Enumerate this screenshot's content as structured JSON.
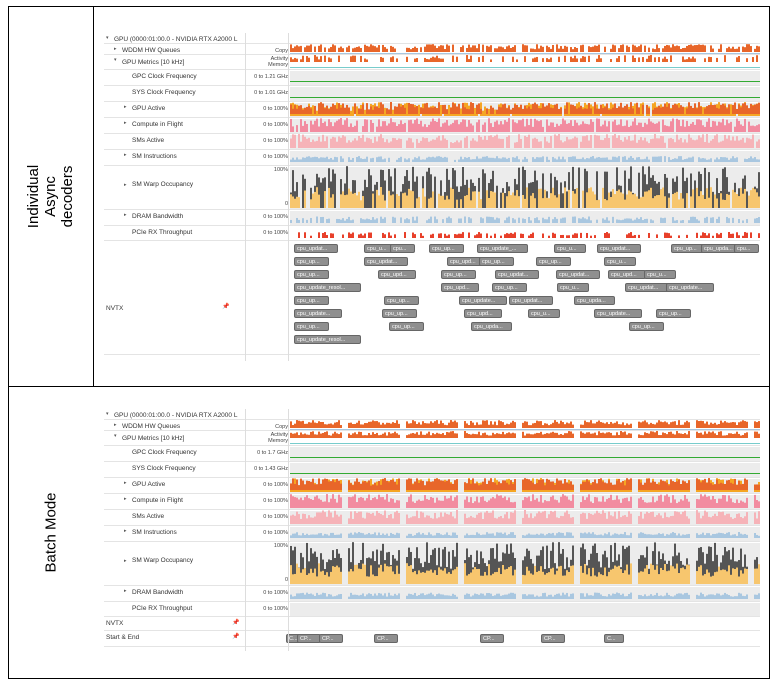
{
  "table": {
    "row_labels": [
      "Individual\nAsync\ndecoders",
      "Batch Mode"
    ]
  },
  "colors": {
    "orange": "#e8662a",
    "amber": "#f5a623",
    "pink": "#f28ca0",
    "lightpink": "#f6b3b8",
    "blue": "#a9c7e0",
    "warp_gray": "#555555",
    "warp_yellow": "#f7c66e",
    "nvtx": "#8f8f8f"
  },
  "panels": [
    {
      "rows": [
        {
          "label": "GPU (0000:01:00.0 - NVIDIA RTX A2000 L",
          "range": "",
          "arrow": "down",
          "indent": 0,
          "kind": "header"
        },
        {
          "label": "WDDM HW Queues",
          "range": "Copy",
          "arrow": "right",
          "indent": 1,
          "kind": "wddm"
        },
        {
          "label": "GPU Metrics [10 kHz]",
          "range": "Activity\nMemory",
          "arrow": "down",
          "indent": 1,
          "kind": "metrics"
        },
        {
          "label": "GPC Clock Frequency",
          "range": "0 to 1.21 GHz",
          "arrow": "",
          "indent": 2,
          "kind": "clock"
        },
        {
          "label": "SYS Clock Frequency",
          "range": "0 to 1.01 GHz",
          "arrow": "",
          "indent": 2,
          "kind": "clock"
        },
        {
          "label": "GPU Active",
          "range": "0 to 100%",
          "arrow": "right",
          "indent": 2,
          "kind": "active"
        },
        {
          "label": "Compute in Flight",
          "range": "0 to 100%",
          "arrow": "right",
          "indent": 2,
          "kind": "compute"
        },
        {
          "label": "SMs Active",
          "range": "0 to 100%",
          "arrow": "",
          "indent": 2,
          "kind": "sms"
        },
        {
          "label": "SM Instructions",
          "range": "0 to 100%",
          "arrow": "right",
          "indent": 2,
          "kind": "instr"
        },
        {
          "label": "SM Warp Occupancy",
          "range": "100%",
          "range_bottom": "0",
          "arrow": "right",
          "indent": 2,
          "kind": "warp"
        },
        {
          "label": "DRAM Bandwidth",
          "range": "0 to 100%",
          "arrow": "right",
          "indent": 2,
          "kind": "dram"
        },
        {
          "label": "PCIe RX Throughput",
          "range": "0 to 100%",
          "arrow": "",
          "indent": 2,
          "kind": "pcie"
        },
        {
          "label": "NVTX",
          "range": "",
          "arrow": "",
          "indent": 0,
          "kind": "nvtx"
        }
      ],
      "nvtx_labels": [
        [
          "cpu_updat...",
          "cpu_u...",
          "cpu...",
          "cpu_up...",
          "cpu_update_...",
          "cpu_u...",
          "cpu_updat...",
          "cpu_up...",
          "cpu_upda...",
          "cpu..."
        ],
        [
          "cpu_up...",
          "cpu_updat...",
          "cpu_upd...",
          "cpu_up...",
          "cpu_up...",
          "cpu_u..."
        ],
        [
          "cpu_up...",
          "cpu_upd...",
          "cpu_up...",
          "cpu_updat...",
          "cpu_updat...",
          "cpu_upd...",
          "cpu_u..."
        ],
        [
          "cpu_update_resol...",
          "cpu_upd...",
          "cpu_up...",
          "cpu_u...",
          "cpu_updat...",
          "cpu_update..."
        ],
        [
          "cpu_up...",
          "cpu_up...",
          "cpu_update...",
          "cpu_updat...",
          "cpu_upda..."
        ],
        [
          "cpu_update...",
          "cpu_up...",
          "cpu_upd...",
          "cpu_u...",
          "cpu_update...",
          "cpu_up..."
        ],
        [
          "cpu_up...",
          "cpu_up...",
          "cpu_upda...",
          "cpu_up..."
        ],
        [
          "cpu_update_resol..."
        ]
      ]
    },
    {
      "rows": [
        {
          "label": "GPU (0000:01:00.0 - NVIDIA RTX A2000 L",
          "range": "",
          "arrow": "down",
          "indent": 0,
          "kind": "header"
        },
        {
          "label": "WDDM HW Queues",
          "range": "Copy",
          "arrow": "right",
          "indent": 1,
          "kind": "wddm"
        },
        {
          "label": "GPU Metrics [10 kHz]",
          "range": "Activity\nMemory",
          "arrow": "down",
          "indent": 1,
          "kind": "metrics"
        },
        {
          "label": "GPC Clock Frequency",
          "range": "0 to 1.7 GHz",
          "arrow": "",
          "indent": 2,
          "kind": "clock"
        },
        {
          "label": "SYS Clock Frequency",
          "range": "0 to 1.43 GHz",
          "arrow": "",
          "indent": 2,
          "kind": "clock"
        },
        {
          "label": "GPU Active",
          "range": "0 to 100%",
          "arrow": "right",
          "indent": 2,
          "kind": "active"
        },
        {
          "label": "Compute in Flight",
          "range": "0 to 100%",
          "arrow": "right",
          "indent": 2,
          "kind": "compute"
        },
        {
          "label": "SMs Active",
          "range": "0 to 100%",
          "arrow": "",
          "indent": 2,
          "kind": "sms"
        },
        {
          "label": "SM Instructions",
          "range": "0 to 100%",
          "arrow": "right",
          "indent": 2,
          "kind": "instr"
        },
        {
          "label": "SM Warp Occupancy",
          "range": "100%",
          "range_bottom": "0",
          "arrow": "right",
          "indent": 2,
          "kind": "warp"
        },
        {
          "label": "DRAM Bandwidth",
          "range": "0 to 100%",
          "arrow": "right",
          "indent": 2,
          "kind": "dram"
        },
        {
          "label": "PCIe RX Throughput",
          "range": "0 to 100%",
          "arrow": "",
          "indent": 2,
          "kind": "pcie"
        },
        {
          "label": "NVTX",
          "range": "",
          "arrow": "",
          "indent": 0,
          "kind": "nvtx2"
        },
        {
          "label": "Start & End",
          "range": "",
          "arrow": "",
          "indent": 0,
          "kind": "startend"
        }
      ],
      "start_end_labels": [
        "C...",
        "CP...",
        "CP...",
        "CP...",
        "CP...",
        "CP...",
        "C..."
      ]
    }
  ]
}
